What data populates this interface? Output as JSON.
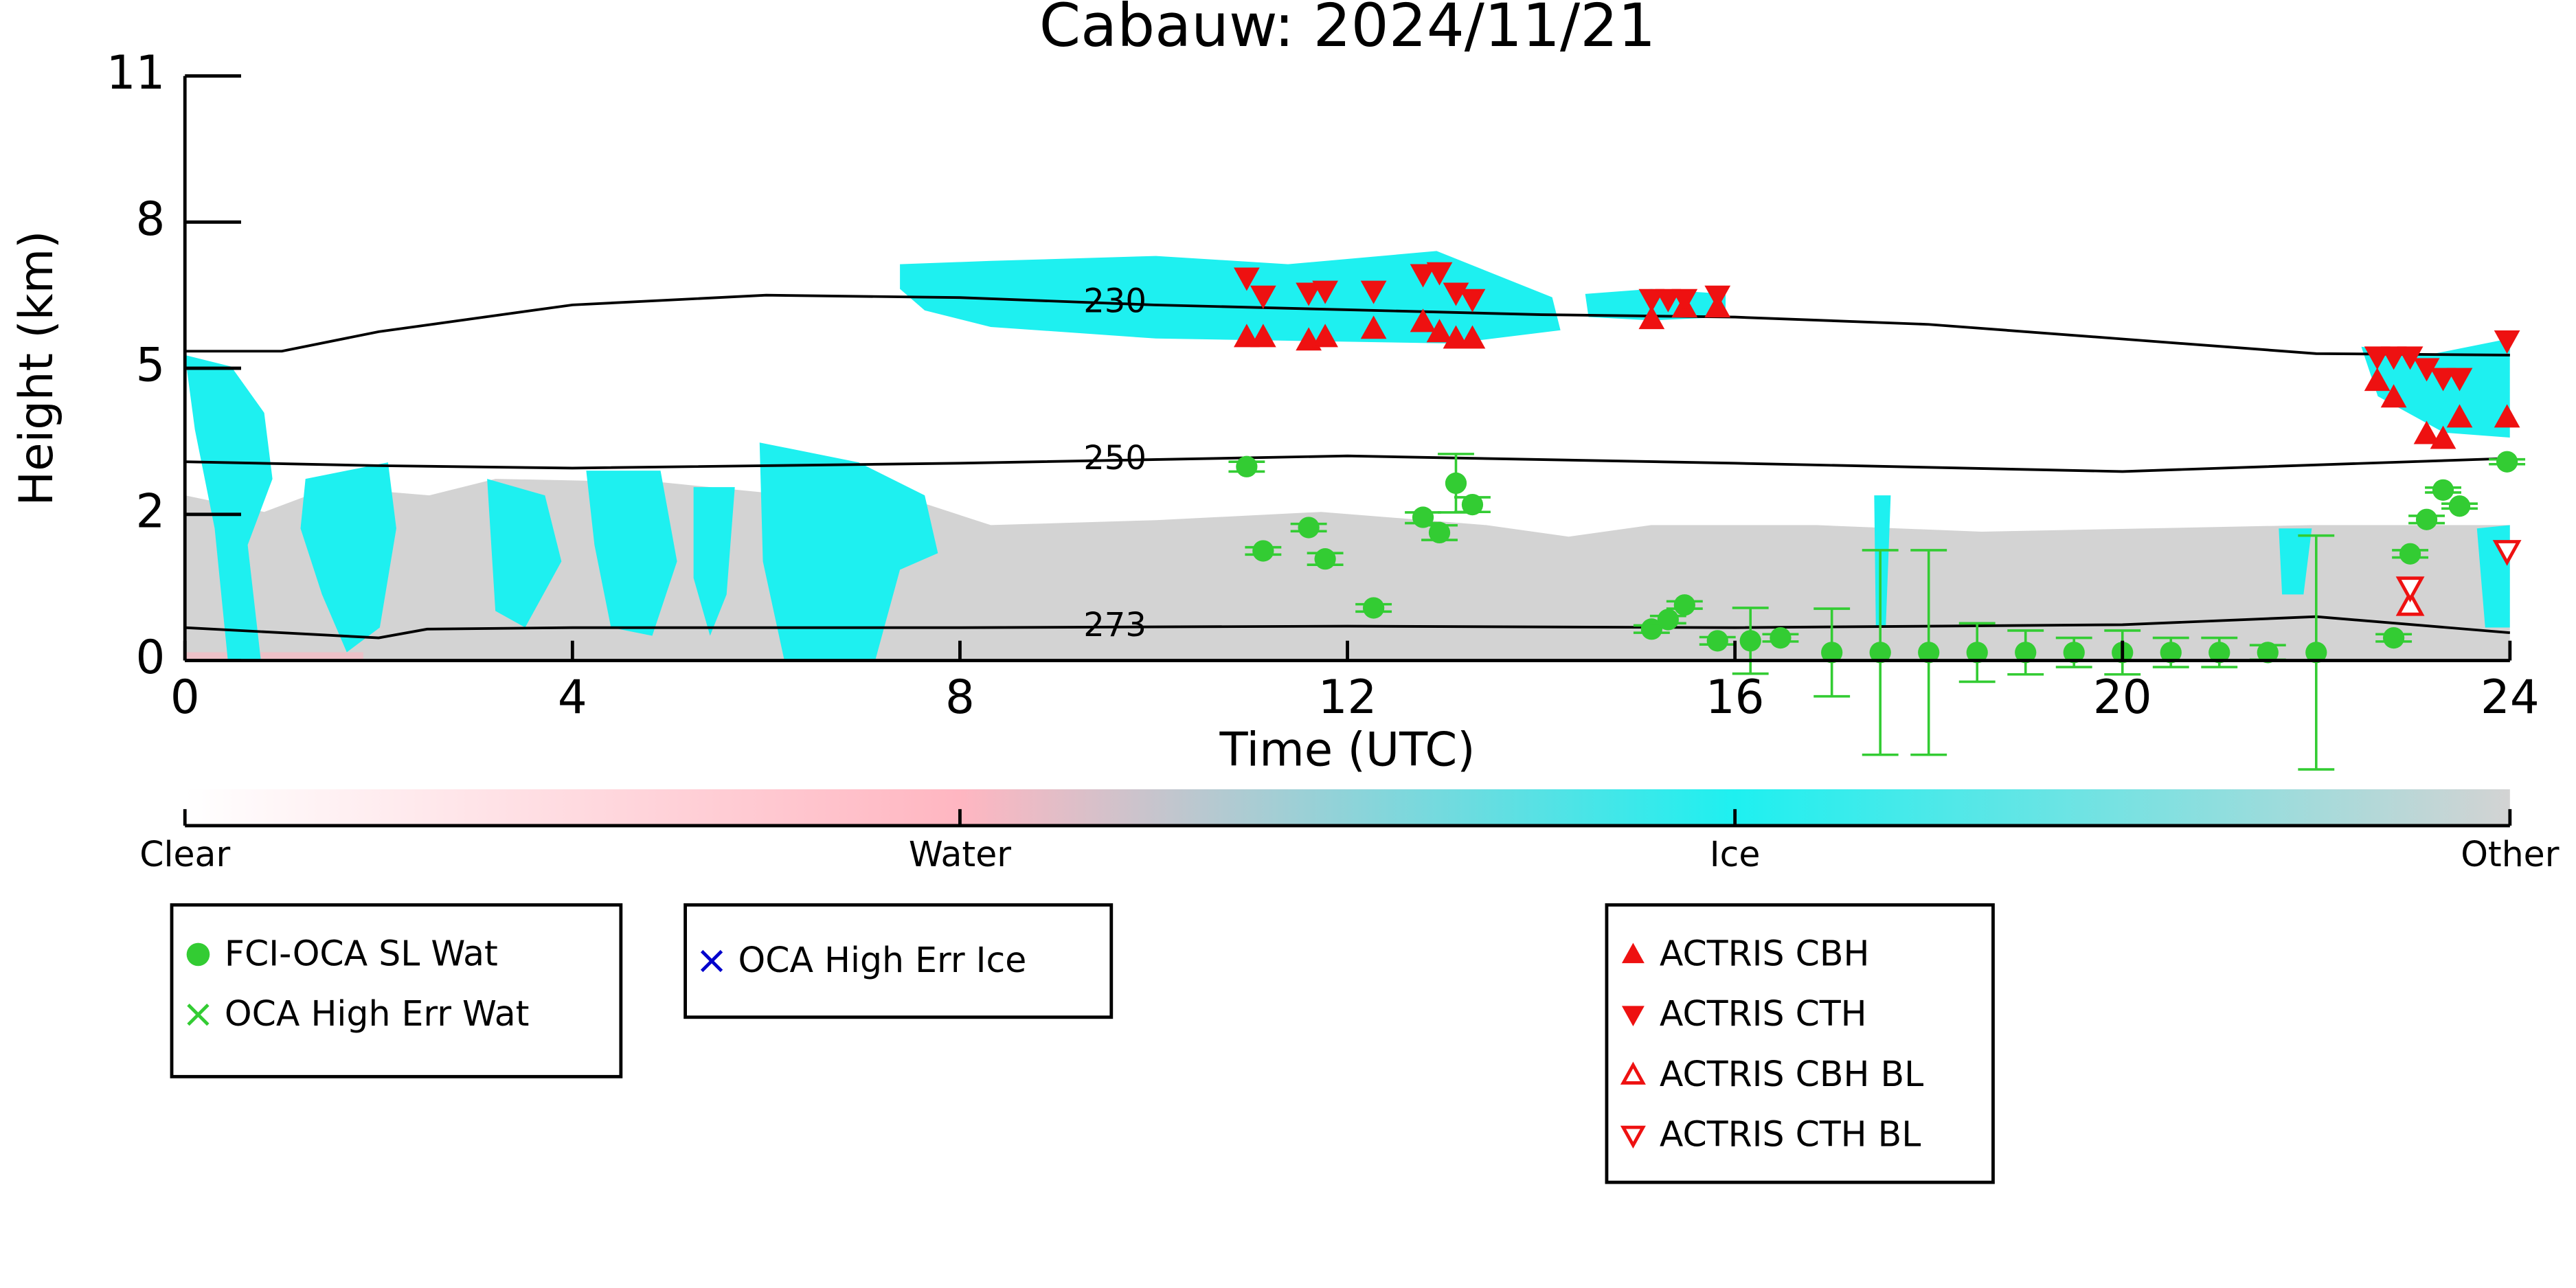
{
  "chart_data": {
    "type": "scatter",
    "title": "Cabauw: 2024/11/21",
    "xlabel": "Time (UTC)",
    "ylabel": "Height (km)",
    "xlim": [
      0,
      24
    ],
    "xticks": [
      0,
      4,
      8,
      12,
      16,
      20,
      24
    ],
    "ylim": [
      0,
      11
    ],
    "yticks": [
      0,
      2,
      5,
      8,
      11
    ],
    "contours": [
      {
        "label": "230",
        "label_x": 9.6,
        "color": "#000000",
        "x": [
          0,
          1,
          2,
          4,
          6,
          8,
          10,
          12,
          14,
          16,
          18,
          20,
          22,
          24
        ],
        "values": [
          5.35,
          5.35,
          5.75,
          6.3,
          6.5,
          6.45,
          6.3,
          6.2,
          6.1,
          6.05,
          5.9,
          5.6,
          5.3,
          5.27
        ]
      },
      {
        "label": "250",
        "label_x": 9.6,
        "color": "#000000",
        "x": [
          0,
          2,
          4,
          8,
          12,
          16,
          20,
          24
        ],
        "values": [
          3.08,
          3.0,
          2.95,
          3.05,
          3.2,
          3.05,
          2.88,
          3.15
        ]
      },
      {
        "label": "273",
        "label_x": 9.6,
        "color": "#000000",
        "x": [
          0,
          2,
          2.5,
          4,
          8,
          12,
          16,
          20,
          22,
          24
        ],
        "values": [
          0.45,
          0.31,
          0.43,
          0.45,
          0.45,
          0.47,
          0.45,
          0.49,
          0.6,
          0.38
        ]
      }
    ],
    "colorbar": {
      "labels": [
        "Clear",
        "Water",
        "Ice",
        "Other"
      ],
      "colors": [
        "#ffffff",
        "#ffb6c1",
        "#1ef0f0",
        "#d3d3d3"
      ]
    },
    "series": [
      {
        "name": "FCI-OCA SL Wat",
        "color": "#33cc33",
        "marker": "circle",
        "filled": true,
        "x": [
          10.96,
          11.13,
          11.6,
          11.77,
          12.27,
          12.78,
          12.95,
          13.12,
          13.29,
          15.14,
          15.31,
          15.48,
          15.82,
          16.16,
          16.47,
          17,
          17.5,
          18,
          18.5,
          19,
          19.5,
          20,
          20.5,
          21,
          21.5,
          22,
          22.8,
          22.97,
          23.14,
          23.31,
          23.48,
          23.97
        ],
        "values": [
          2.98,
          1.5,
          1.82,
          1.39,
          0.72,
          1.96,
          1.75,
          2.64,
          2.2,
          0.43,
          0.56,
          0.76,
          0.27,
          0.27,
          0.31,
          0.11,
          0.11,
          0.11,
          0.11,
          0.11,
          0.11,
          0.11,
          0.11,
          0.11,
          0.11,
          0.11,
          0.31,
          1.46,
          1.93,
          2.5,
          2.17,
          3.08
        ],
        "errors": [
          0.1,
          0.05,
          0.05,
          0.08,
          0.05,
          0.08,
          0.1,
          0.6,
          0.15,
          0.05,
          0.05,
          0.05,
          0.05,
          0.45,
          0.05,
          0.6,
          1.4,
          1.4,
          0.4,
          0.3,
          0.2,
          0.3,
          0.2,
          0.2,
          0.1,
          1.6,
          0.05,
          0.05,
          0.05,
          0.05,
          0.05,
          0.05
        ]
      },
      {
        "name": "OCA High Err Wat",
        "color": "#33cc33",
        "marker": "x",
        "filled": true,
        "x": [],
        "values": []
      },
      {
        "name": "OCA High Err Ice",
        "color": "#0000cc",
        "marker": "x",
        "filled": true,
        "x": [],
        "values": []
      },
      {
        "name": "ACTRIS CBH",
        "color": "#ee1111",
        "marker": "triangle-up",
        "filled": true,
        "x": [
          10.96,
          11.13,
          11.6,
          11.77,
          12.27,
          12.78,
          12.95,
          13.12,
          13.29,
          15.14,
          15.48,
          15.82,
          22.63,
          22.8,
          23.14,
          23.31,
          23.48,
          23.97
        ],
        "values": [
          5.64,
          5.64,
          5.57,
          5.64,
          5.81,
          5.95,
          5.74,
          5.61,
          5.61,
          6.01,
          6.25,
          6.25,
          4.74,
          4.4,
          3.65,
          3.55,
          3.99,
          3.99
        ]
      },
      {
        "name": "ACTRIS CTH",
        "color": "#ee1111",
        "marker": "triangle-down",
        "filled": true,
        "x": [
          10.96,
          11.13,
          11.6,
          11.77,
          12.27,
          12.78,
          12.95,
          13.12,
          13.29,
          15.14,
          15.31,
          15.48,
          15.82,
          22.63,
          22.8,
          22.97,
          23.14,
          23.31,
          23.48,
          23.97
        ],
        "values": [
          6.86,
          6.49,
          6.55,
          6.59,
          6.59,
          6.93,
          6.97,
          6.55,
          6.42,
          6.42,
          6.42,
          6.42,
          6.49,
          5.24,
          5.24,
          5.24,
          5.0,
          4.8,
          4.8,
          5.57
        ]
      },
      {
        "name": "ACTRIS CBH BL",
        "color": "#ee1111",
        "marker": "triangle-up",
        "filled": false,
        "x": [
          22.97
        ],
        "values": [
          0.76
        ]
      },
      {
        "name": "ACTRIS CTH BL",
        "color": "#ee1111",
        "marker": "triangle-down",
        "filled": false,
        "x": [
          22.97,
          23.97
        ],
        "values": [
          1.0,
          1.5
        ]
      }
    ]
  }
}
